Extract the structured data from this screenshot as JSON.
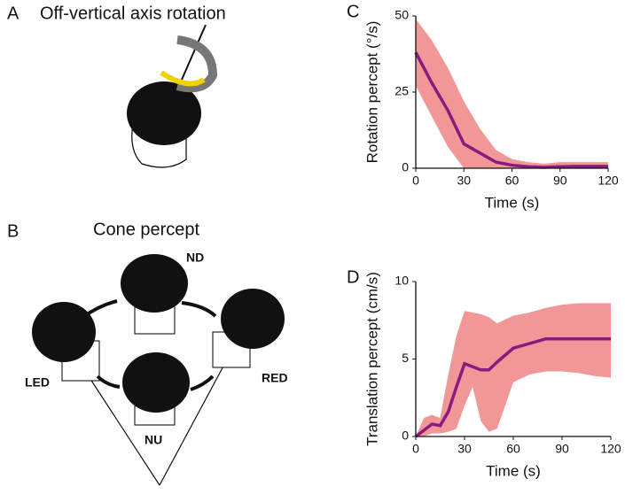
{
  "figure": {
    "panel_a": "A",
    "title_a": "Off-vertical axis rotation",
    "panel_b": "B",
    "title_b": "Cone percept",
    "label_nd": "ND",
    "label_led": "LED",
    "label_red": "RED",
    "label_nu": "NU"
  },
  "chart_data": [
    {
      "type": "line",
      "panel": "C",
      "xlabel": "Time (s)",
      "ylabel": "Rotation percept (°/s)",
      "x": [
        0,
        10,
        20,
        30,
        40,
        50,
        60,
        70,
        80,
        90,
        100,
        110,
        120
      ],
      "series": [
        {
          "color": "#8b1a7e",
          "band_color": "#f08585",
          "values": [
            38,
            28,
            19,
            8,
            5,
            2,
            1,
            0.5,
            0.3,
            0.5,
            0.6,
            0.6,
            0.6
          ],
          "upper": [
            49,
            42,
            33,
            22,
            13,
            6,
            3,
            2,
            1.5,
            2,
            2,
            2,
            2
          ],
          "lower": [
            27,
            17,
            7,
            0,
            0,
            0,
            0,
            0,
            0,
            0,
            0,
            0,
            0
          ]
        }
      ],
      "xlim": [
        0,
        120
      ],
      "xticks": [
        0,
        30,
        60,
        90,
        120
      ],
      "ylim": [
        0,
        50
      ],
      "yticks": [
        0,
        25,
        50
      ]
    },
    {
      "type": "line",
      "panel": "D",
      "xlabel": "Time (s)",
      "ylabel": "Translation percept (cm/s)",
      "x": [
        0,
        5,
        10,
        15,
        20,
        25,
        30,
        35,
        40,
        45,
        50,
        60,
        70,
        80,
        90,
        100,
        110,
        120
      ],
      "series": [
        {
          "color": "#8b1a7e",
          "band_color": "#f08585",
          "values": [
            0,
            0.4,
            0.8,
            0.7,
            1.6,
            3.2,
            4.7,
            4.5,
            4.3,
            4.3,
            4.8,
            5.7,
            6.0,
            6.3,
            6.3,
            6.3,
            6.3,
            6.3
          ],
          "upper": [
            0,
            1.2,
            1.4,
            1.2,
            4,
            6.5,
            8.1,
            8,
            7.9,
            7.7,
            7.3,
            7.8,
            8,
            8.3,
            8.5,
            8.6,
            8.6,
            8.6
          ],
          "lower": [
            0,
            0,
            0.2,
            0.2,
            0.3,
            0.5,
            2,
            3.2,
            1,
            0.3,
            0.5,
            3.5,
            4,
            4.2,
            4.2,
            4.1,
            3.9,
            3.8
          ]
        }
      ],
      "xlim": [
        0,
        120
      ],
      "xticks": [
        0,
        30,
        60,
        90,
        120
      ],
      "ylim": [
        0,
        10
      ],
      "yticks": [
        0,
        5,
        10
      ]
    }
  ]
}
